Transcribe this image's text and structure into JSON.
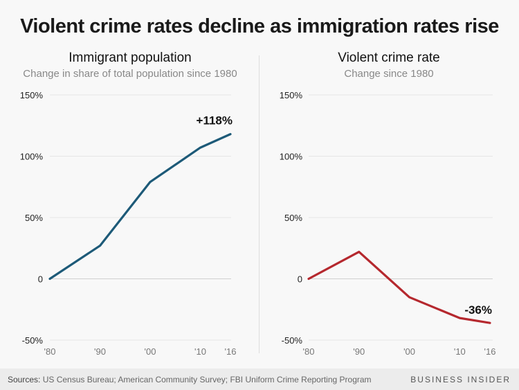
{
  "title": "Violent crime rates decline as immigration rates rise",
  "footer": {
    "sources_label": "Sources:",
    "sources_text": "US Census Bureau; American Community Survey; FBI Uniform Crime Reporting Program",
    "brand": "BUSINESS INSIDER"
  },
  "chart_data": [
    {
      "type": "line",
      "title": "Immigrant population",
      "subtitle": "Change in share of total population since 1980",
      "x": [
        "'80",
        "'90",
        "'00",
        "'10",
        "'16"
      ],
      "x_years": [
        1980,
        1990,
        2000,
        2010,
        2016
      ],
      "series": [
        {
          "name": "Immigrant population",
          "values": [
            0,
            27,
            79,
            107,
            118
          ],
          "color": "#1d5a78"
        }
      ],
      "annotation": "+118%",
      "yticks": [
        "150%",
        "100%",
        "50%",
        "0",
        "-50%"
      ],
      "ylim": [
        -50,
        150
      ],
      "grid": true,
      "xlabel": "",
      "ylabel": ""
    },
    {
      "type": "line",
      "title": "Violent crime rate",
      "subtitle": "Change since 1980",
      "x": [
        "'80",
        "'90",
        "'00",
        "'10",
        "'16"
      ],
      "x_years": [
        1980,
        1990,
        2000,
        2010,
        2016
      ],
      "series": [
        {
          "name": "Violent crime rate",
          "values": [
            0,
            22,
            -15,
            -32,
            -36
          ],
          "color": "#b5282e"
        }
      ],
      "annotation": "-36%",
      "yticks": [
        "150%",
        "100%",
        "50%",
        "0",
        "-50%"
      ],
      "ylim": [
        -50,
        150
      ],
      "grid": true,
      "xlabel": "",
      "ylabel": ""
    }
  ]
}
